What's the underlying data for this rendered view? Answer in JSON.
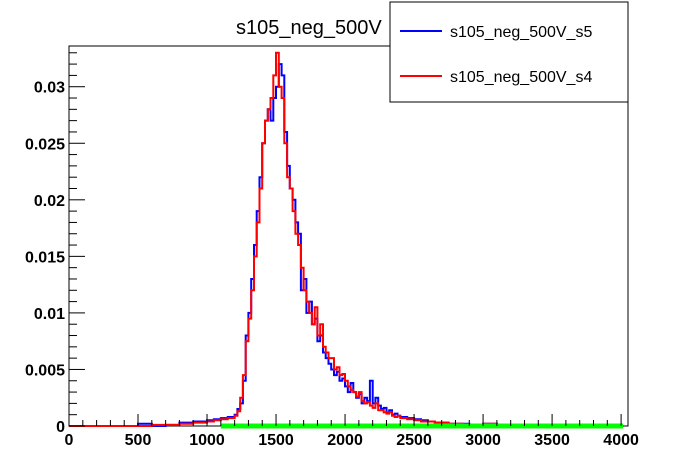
{
  "chart_data": {
    "type": "line",
    "title": "s105_neg_500V",
    "xlabel": "",
    "ylabel": "",
    "xlim": [
      0,
      4050
    ],
    "ylim": [
      0,
      0.0336
    ],
    "x_ticks": [
      0,
      500,
      1000,
      1500,
      2000,
      2500,
      3000,
      3500,
      4000
    ],
    "x_tick_labels": [
      "0",
      "500",
      "1000",
      "1500",
      "2000",
      "2500",
      "3000",
      "3500",
      "4000"
    ],
    "y_ticks": [
      0,
      0.005,
      0.01,
      0.015,
      0.02,
      0.025,
      0.03
    ],
    "y_tick_labels": [
      "0",
      "0.005",
      "0.01",
      "0.015",
      "0.02",
      "0.025",
      "0.03"
    ],
    "grid": false,
    "legend": {
      "position": "top-right"
    },
    "series": [
      {
        "name": "s105_neg_500V_s5",
        "color": "#0000ff",
        "x": [
          0,
          100,
          200,
          300,
          400,
          500,
          600,
          700,
          800,
          900,
          1000,
          1050,
          1100,
          1150,
          1200,
          1220,
          1240,
          1260,
          1280,
          1300,
          1320,
          1340,
          1360,
          1380,
          1400,
          1420,
          1440,
          1460,
          1480,
          1500,
          1520,
          1540,
          1560,
          1580,
          1600,
          1620,
          1640,
          1660,
          1680,
          1700,
          1720,
          1740,
          1760,
          1780,
          1800,
          1820,
          1840,
          1860,
          1880,
          1900,
          1920,
          1940,
          1960,
          1980,
          2000,
          2020,
          2040,
          2060,
          2080,
          2100,
          2120,
          2140,
          2160,
          2180,
          2200,
          2220,
          2240,
          2260,
          2280,
          2300,
          2320,
          2340,
          2360,
          2380,
          2400,
          2450,
          2500,
          2550,
          2600,
          2650,
          2700,
          2750,
          2800,
          2850,
          2900,
          2950,
          3000,
          3100,
          3200,
          3300,
          3400,
          3500,
          3600,
          3700,
          3800,
          3900,
          4000
        ],
        "values": [
          0,
          0,
          0,
          0,
          0,
          0.0002,
          0,
          0.0001,
          0.0003,
          0.0004,
          0.0005,
          0.0006,
          0.0007,
          0.0008,
          0.001,
          0.0015,
          0.002,
          0.004,
          0.008,
          0.01,
          0.013,
          0.016,
          0.019,
          0.022,
          0.025,
          0.027,
          0.028,
          0.027,
          0.029,
          0.03,
          0.032,
          0.031,
          0.026,
          0.023,
          0.021,
          0.02,
          0.018,
          0.017,
          0.012,
          0.013,
          0.01,
          0.011,
          0.009,
          0.0095,
          0.0075,
          0.008,
          0.0065,
          0.006,
          0.0055,
          0.005,
          0.0045,
          0.0048,
          0.004,
          0.0042,
          0.0035,
          0.003,
          0.0038,
          0.003,
          0.0025,
          0.0028,
          0.002,
          0.0025,
          0.0022,
          0.004,
          0.002,
          0.0025,
          0.0018,
          0.0015,
          0.0016,
          0.0012,
          0.0014,
          0.001,
          0.0011,
          0.0009,
          0.0008,
          0.0007,
          0.0006,
          0.0005,
          0.0004,
          0.0003,
          0.0003,
          0.0002,
          0.0002,
          0.0002,
          0.0001,
          0.0001,
          0.0002,
          0.0001,
          0.0001,
          0,
          0.0001,
          0,
          0,
          0,
          0,
          0,
          0
        ]
      },
      {
        "name": "s105_neg_500V_s4",
        "color": "#ff0000",
        "x": [
          0,
          100,
          200,
          300,
          400,
          500,
          600,
          700,
          800,
          900,
          1000,
          1050,
          1100,
          1150,
          1200,
          1220,
          1240,
          1260,
          1280,
          1300,
          1320,
          1340,
          1360,
          1380,
          1400,
          1420,
          1440,
          1460,
          1480,
          1500,
          1520,
          1540,
          1560,
          1580,
          1600,
          1620,
          1640,
          1660,
          1680,
          1700,
          1720,
          1740,
          1760,
          1780,
          1800,
          1820,
          1840,
          1860,
          1880,
          1900,
          1920,
          1940,
          1960,
          1980,
          2000,
          2020,
          2040,
          2060,
          2080,
          2100,
          2120,
          2140,
          2160,
          2180,
          2200,
          2220,
          2240,
          2260,
          2280,
          2300,
          2320,
          2340,
          2360,
          2380,
          2400,
          2450,
          2500,
          2550,
          2600,
          2650,
          2700,
          2750,
          2800,
          2850,
          2900,
          2950,
          3000,
          3100,
          3200,
          3300,
          3400,
          3500,
          3600,
          3700,
          3800,
          3900,
          4000
        ],
        "values": [
          0,
          0,
          0,
          0,
          0,
          0,
          0.0001,
          0.0001,
          0.0002,
          0.0003,
          0.0004,
          0.0005,
          0.0006,
          0.0007,
          0.0009,
          0.0013,
          0.0025,
          0.0045,
          0.0075,
          0.0095,
          0.012,
          0.015,
          0.018,
          0.021,
          0.025,
          0.027,
          0.028,
          0.029,
          0.031,
          0.033,
          0.03,
          0.029,
          0.025,
          0.022,
          0.021,
          0.019,
          0.017,
          0.016,
          0.014,
          0.012,
          0.011,
          0.01,
          0.009,
          0.0105,
          0.008,
          0.009,
          0.007,
          0.0065,
          0.006,
          0.006,
          0.005,
          0.0052,
          0.0045,
          0.0046,
          0.004,
          0.0035,
          0.0032,
          0.003,
          0.0026,
          0.003,
          0.0022,
          0.002,
          0.0021,
          0.0018,
          0.0016,
          0.002,
          0.0014,
          0.0014,
          0.0012,
          0.0011,
          0.0012,
          0.0009,
          0.0008,
          0.0009,
          0.0007,
          0.0006,
          0.0005,
          0.0004,
          0.0004,
          0.0003,
          0.0003,
          0.0002,
          0.0002,
          0.0001,
          0.0001,
          0.0001,
          0.0002,
          0.0001,
          0,
          0.0001,
          0,
          0,
          0,
          0,
          0,
          0,
          0
        ]
      },
      {
        "color": "#00ff00",
        "x": [
          1100,
          4000
        ],
        "values": [
          0,
          0
        ]
      }
    ]
  }
}
